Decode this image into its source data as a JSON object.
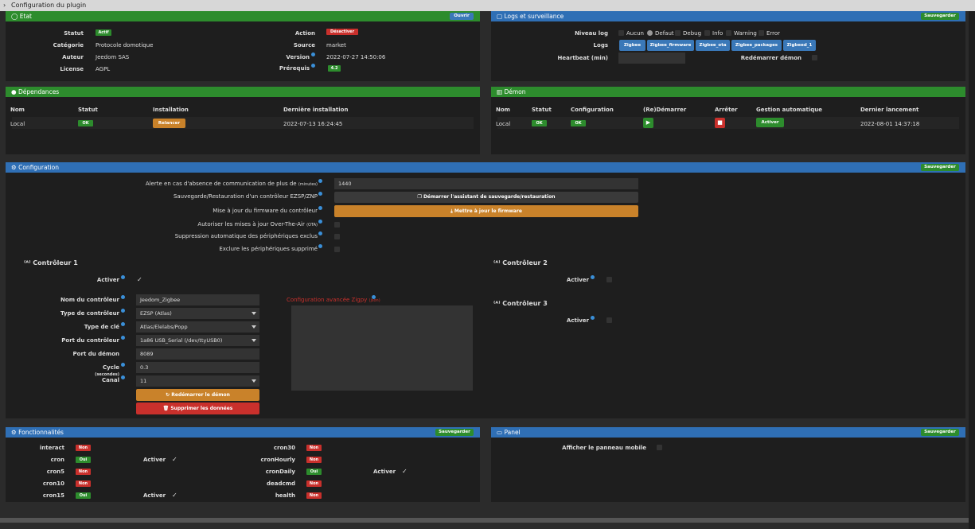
{
  "window": {
    "title": "Configuration du plugin"
  },
  "etat": {
    "title": "Etat",
    "open": "Ouvrir",
    "statut_label": "Statut",
    "statut": "Actif",
    "action_label": "Action",
    "action": "Désactiver",
    "categorie_label": "Catégorie",
    "categorie": "Protocole domotique",
    "source_label": "Source",
    "source": "market",
    "auteur_label": "Auteur",
    "auteur": "Jeedom SAS",
    "version_label": "Version",
    "version": "2022-07-27 14:50:06",
    "license_label": "License",
    "license": "AGPL",
    "prereq_label": "Prérequis",
    "prereq": "4.2"
  },
  "logs": {
    "title": "Logs et surveillance",
    "save": "Sauvegarder",
    "niveau_label": "Niveau log",
    "levels": [
      "Aucun",
      "Defaut",
      "Debug",
      "Info",
      "Warning",
      "Error"
    ],
    "logs_label": "Logs",
    "buttons": [
      "Zigbee",
      "Zigbee_firmware",
      "Zigbee_ota",
      "Zigbee_packages",
      "Zigbeed_1"
    ],
    "heartbeat_label": "Heartbeat (min)",
    "restart_label": "Redémarrer démon"
  },
  "deps": {
    "title": "Dépendances",
    "h_nom": "Nom",
    "h_statut": "Statut",
    "h_install": "Installation",
    "h_last": "Dernière installation",
    "nom": "Local",
    "statut": "OK",
    "relancer": "Relancer",
    "last": "2022-07-13 16:24:45"
  },
  "demon": {
    "title": "Démon",
    "h_nom": "Nom",
    "h_statut": "Statut",
    "h_config": "Configuration",
    "h_restart": "(Re)Démarrer",
    "h_stop": "Arrêter",
    "h_gestion": "Gestion automatique",
    "h_last": "Dernier lancement",
    "nom": "Local",
    "statut": "OK",
    "config": "OK",
    "gestion": "Activer",
    "last": "2022-08-01 14:37:18"
  },
  "config": {
    "title": "Configuration",
    "save": "Sauvegarder",
    "alerte_label": "Alerte en cas d'absence de communication de plus de",
    "alerte_unit": "(minutes)",
    "alerte_value": "1440",
    "backup_label": "Sauvegarde/Restauration d'un contrôleur EZSP/ZNP",
    "backup_btn": "Démarrer l'assistant de sauvegarde/restauration",
    "fw_label": "Mise à jour du firmware du contrôleur",
    "fw_btn": "Mettre à jour le firmware",
    "ota_label": "Autoriser les mises à jour Over-The-Air",
    "ota_unit": "(OTA)",
    "suppr_auto_label": "Suppression automatique des périphériques exclus",
    "exclure_label": "Exclure les périphériques supprimé",
    "c1_title": "Contrôleur 1",
    "c2_title": "Contrôleur 2",
    "c3_title": "Contrôleur 3",
    "active_label": "Activer",
    "nom_label": "Nom du contrôleur",
    "nom_value": "Jeedom_Zigbee",
    "type_label": "Type de contrôleur",
    "type_value": "EZSP (Atlas)",
    "cle_label": "Type de clé",
    "cle_value": "Atlas/Elelabs/Popp",
    "port_label": "Port du contrôleur",
    "port_value": "1a86 USB_Serial (/dev/ttyUSB0)",
    "portd_label": "Port du démon",
    "portd_value": "8089",
    "cycle_label": "Cycle",
    "cycle_unit": "(secondes)",
    "cycle_value": "0.3",
    "canal_label": "Canal",
    "canal_value": "11",
    "restart_btn": "Redémarrer le démon",
    "delete_btn": "Supprimer les données",
    "adv_label": "Configuration avancée Zigpy",
    "adv_unit": "(json)"
  },
  "fonct": {
    "title": "Fonctionnalités",
    "save": "Sauvegarder",
    "rows_left": [
      {
        "name": "interact",
        "val": "Non"
      },
      {
        "name": "cron",
        "val": "Oui",
        "act": "Activer"
      },
      {
        "name": "cron5",
        "val": "Non"
      },
      {
        "name": "cron10",
        "val": "Non"
      },
      {
        "name": "cron15",
        "val": "Oui",
        "act": "Activer"
      }
    ],
    "rows_right": [
      {
        "name": "cron30",
        "val": "Non"
      },
      {
        "name": "cronHourly",
        "val": "Non"
      },
      {
        "name": "cronDaily",
        "val": "Oui",
        "act": "Activer"
      },
      {
        "name": "deadcmd",
        "val": "Non"
      },
      {
        "name": "health",
        "val": "Non"
      }
    ]
  },
  "panel": {
    "title": "Panel",
    "save": "Sauvegarder",
    "mobile_label": "Afficher le panneau mobile"
  },
  "colors": {
    "green": "#2d8c2d",
    "blue": "#2f6fb5",
    "red": "#c9302c",
    "orange": "#c9822a"
  }
}
